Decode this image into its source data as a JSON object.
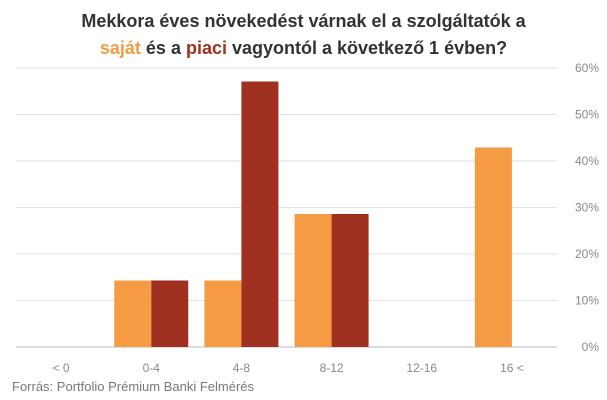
{
  "chart_data": {
    "type": "bar",
    "title_parts": {
      "line1": "Mekkora éves növekedést várnak el a szolgáltatók a",
      "series1": "saját",
      "connector": " és a ",
      "series2": "piaci",
      "rest": " vagyontól a következő 1 évben?"
    },
    "categories": [
      "< 0",
      "0-4",
      "4-8",
      "8-12",
      "12-16",
      "16 <"
    ],
    "series": [
      {
        "name": "saját",
        "color": "#f59b43",
        "values": [
          0,
          14.3,
          14.3,
          28.6,
          0,
          42.9
        ]
      },
      {
        "name": "piaci",
        "color": "#a0301f",
        "values": [
          0,
          14.3,
          57.1,
          28.6,
          0,
          0
        ]
      }
    ],
    "y_ticks": [
      "0%",
      "10%",
      "20%",
      "30%",
      "40%",
      "50%",
      "60%"
    ],
    "ylim": [
      0,
      60
    ],
    "grid": true,
    "source": "Forrás: Portfolio Prémium Banki Felmérés"
  }
}
